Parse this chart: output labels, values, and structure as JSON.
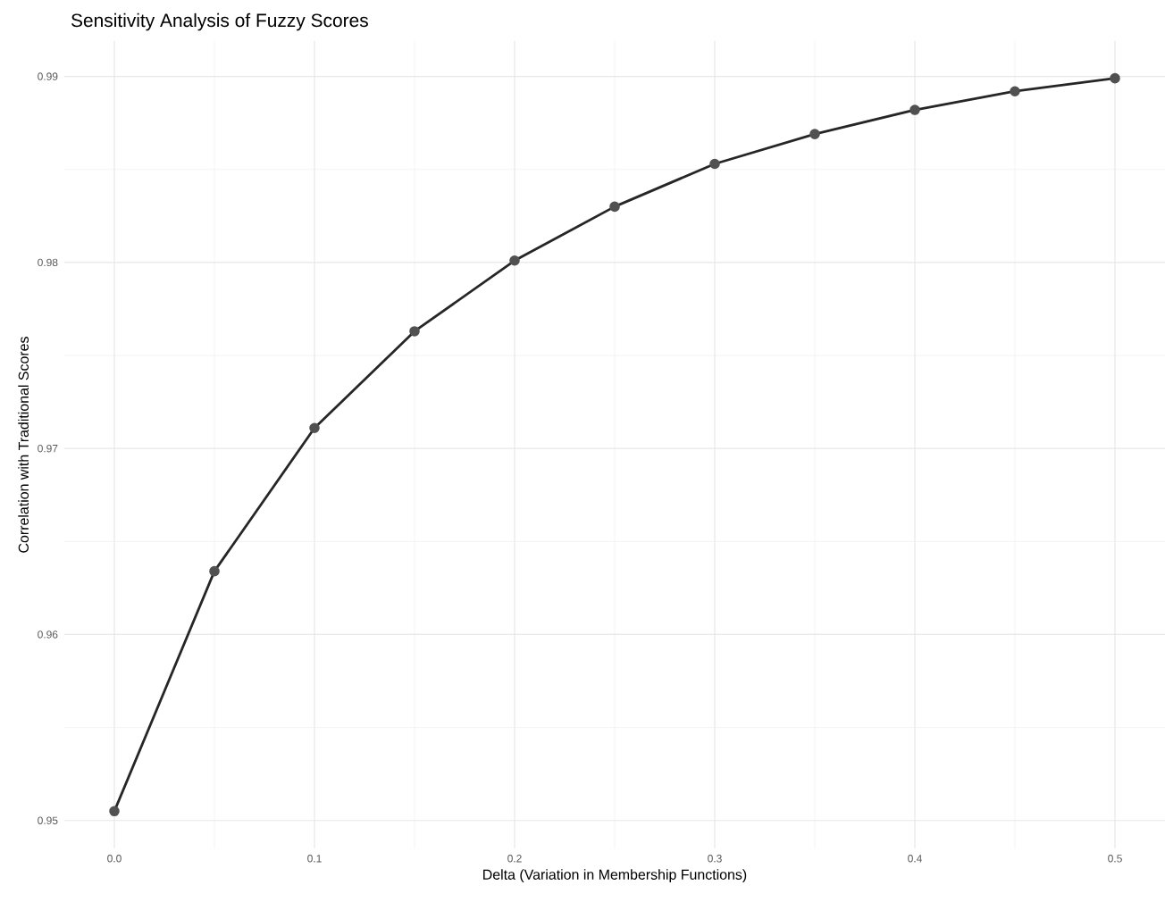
{
  "chart_data": {
    "type": "line",
    "title": "Sensitivity Analysis of Fuzzy Scores",
    "xlabel": "Delta (Variation in Membership Functions)",
    "ylabel": "Correlation with Traditional Scores",
    "x": [
      0,
      0.05,
      0.1,
      0.15,
      0.2,
      0.25,
      0.3,
      0.35,
      0.4,
      0.45,
      0.5
    ],
    "series": [
      {
        "color": "#262626",
        "values": [
          0.9505,
          0.9634,
          0.9711,
          0.9763,
          0.9801,
          0.983,
          0.9853,
          0.9869,
          0.9882,
          0.9892,
          0.9899
        ]
      }
    ],
    "xlim": [
      -0.025,
      0.525
    ],
    "ylim": [
      0.9485,
      0.9919
    ],
    "xticks": [
      {
        "value": 0,
        "label": "0.0"
      },
      0.1,
      0.2,
      0.3,
      0.4,
      0.5
    ],
    "yticks": [
      0.95,
      0.96,
      0.97,
      0.98,
      0.99
    ],
    "grid": true,
    "marker": "circle",
    "line_style": "solid"
  }
}
